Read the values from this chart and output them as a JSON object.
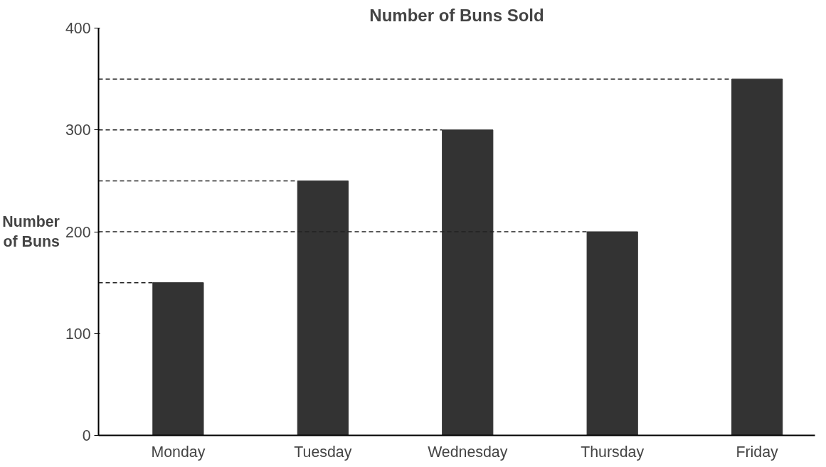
{
  "chart_data": {
    "type": "bar",
    "title": "Number of Buns Sold",
    "ylabel": "Number\nof Buns",
    "categories": [
      "Monday",
      "Tuesday",
      "Wednesday",
      "Thursday",
      "Friday"
    ],
    "values": [
      150,
      250,
      300,
      200,
      350
    ],
    "color": "#333333",
    "ylim": [
      0,
      400
    ],
    "yticks": [
      0,
      100,
      200,
      300,
      400
    ],
    "grid": false,
    "ref_lines": [
      {
        "axis": "y",
        "value": 150,
        "line_style": "dashed"
      },
      {
        "axis": "y",
        "value": 200,
        "line_style": "dashed"
      },
      {
        "axis": "y",
        "value": 250,
        "line_style": "dashed"
      },
      {
        "axis": "y",
        "value": 300,
        "line_style": "dashed"
      },
      {
        "axis": "y",
        "value": 350,
        "line_style": "dashed"
      }
    ]
  }
}
